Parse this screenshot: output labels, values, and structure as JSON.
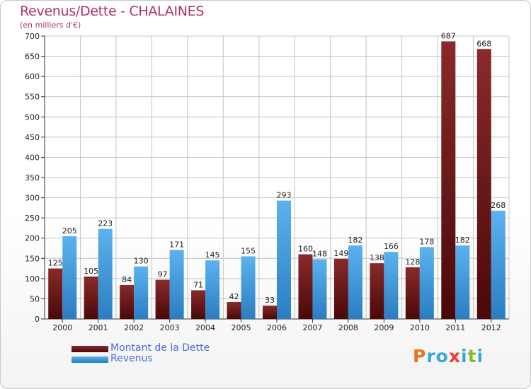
{
  "chart_data": {
    "type": "bar",
    "title": "Revenus/Dette - CHALAINES",
    "subtitle": "(en milliers d'€)",
    "categories": [
      "2000",
      "2001",
      "2002",
      "2003",
      "2004",
      "2005",
      "2006",
      "2007",
      "2008",
      "2009",
      "2010",
      "2011",
      "2012"
    ],
    "series": [
      {
        "name": "Montant de la Dette",
        "color": "#7a1c1c",
        "values": [
          125,
          105,
          84,
          97,
          71,
          42,
          33,
          160,
          149,
          138,
          128,
          687,
          668
        ]
      },
      {
        "name": "Revenus",
        "color": "#4aa3e2",
        "values": [
          205,
          223,
          130,
          171,
          145,
          155,
          293,
          148,
          182,
          166,
          178,
          182,
          268
        ]
      }
    ],
    "yticks": [
      0,
      50,
      100,
      150,
      200,
      250,
      300,
      350,
      400,
      450,
      500,
      550,
      600,
      650,
      700
    ],
    "ylim": [
      0,
      700
    ],
    "grid": true,
    "legend": "bottom-left"
  },
  "logo": {
    "text": "Proxiti",
    "letters": [
      "P",
      "r",
      "o",
      "x",
      "i",
      "t",
      "i"
    ],
    "colors": [
      "#e8731a",
      "#3aa8dd",
      "#3aa8dd",
      "#e83a3a",
      "#3aa8dd",
      "#86b82e",
      "#3aa8dd"
    ]
  }
}
